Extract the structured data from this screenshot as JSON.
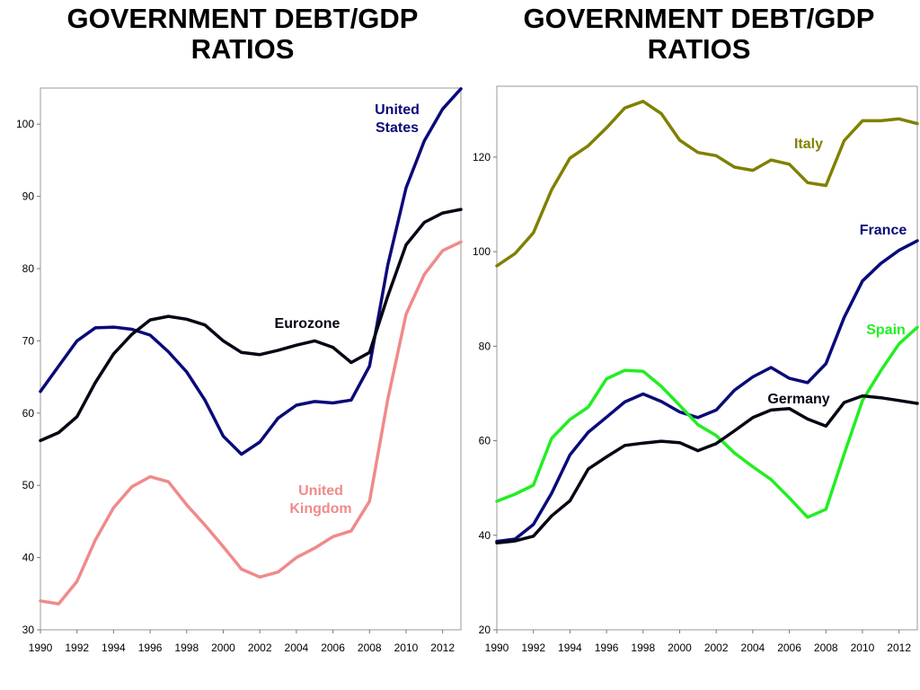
{
  "chart_data": [
    {
      "type": "line",
      "title": "GOVERNMENT DEBT/GDP RATIOS",
      "xlim": [
        1990,
        2013
      ],
      "ylim": [
        30,
        105
      ],
      "xticks": [
        1990,
        1992,
        1994,
        1996,
        1998,
        2000,
        2002,
        2004,
        2006,
        2008,
        2010,
        2012
      ],
      "yticks": [
        30,
        40,
        50,
        60,
        70,
        80,
        90,
        100
      ],
      "grid": false,
      "x": [
        1990,
        1991,
        1992,
        1993,
        1994,
        1995,
        1996,
        1997,
        1998,
        1999,
        2000,
        2001,
        2002,
        2003,
        2004,
        2005,
        2006,
        2007,
        2008,
        2009,
        2010,
        2011,
        2012,
        2013
      ],
      "series": [
        {
          "name": "United States",
          "label_lines": [
            "United",
            "States"
          ],
          "color": "#0a0a78",
          "values": [
            63,
            66.5,
            70,
            71.8,
            71.9,
            71.6,
            70.8,
            68.5,
            65.7,
            61.8,
            56.8,
            54.3,
            56,
            59.3,
            61.1,
            61.6,
            61.4,
            61.8,
            66.5,
            80.5,
            91.2,
            97.7,
            102.1,
            104.9
          ]
        },
        {
          "name": "Eurozone",
          "label_lines": [
            "Eurozone"
          ],
          "color": "#050515",
          "values": [
            56.2,
            57.3,
            59.5,
            64.2,
            68.2,
            70.9,
            72.9,
            73.4,
            73,
            72.2,
            70,
            68.4,
            68.1,
            68.7,
            69.4,
            70,
            69.1,
            67,
            68.4,
            76.2,
            83.3,
            86.4,
            87.7,
            88.2
          ]
        },
        {
          "name": "United Kingdom",
          "label_lines": [
            "United",
            "Kingdom"
          ],
          "color": "#f08a8a",
          "values": [
            34,
            33.6,
            36.7,
            42.4,
            46.9,
            49.8,
            51.2,
            50.5,
            47.3,
            44.5,
            41.5,
            38.4,
            37.3,
            38,
            40,
            41.3,
            42.9,
            43.7,
            47.8,
            61.9,
            73.7,
            79.2,
            82.5,
            83.7
          ]
        }
      ]
    },
    {
      "type": "line",
      "title": "GOVERNMENT DEBT/GDP RATIOS",
      "xlim": [
        1990,
        2013
      ],
      "ylim": [
        20,
        135
      ],
      "xticks": [
        1990,
        1992,
        1994,
        1996,
        1998,
        2000,
        2002,
        2004,
        2006,
        2008,
        2010,
        2012
      ],
      "yticks": [
        20,
        40,
        60,
        80,
        100,
        120
      ],
      "grid": false,
      "x": [
        1990,
        1991,
        1992,
        1993,
        1994,
        1995,
        1996,
        1997,
        1998,
        1999,
        2000,
        2001,
        2002,
        2003,
        2004,
        2005,
        2006,
        2007,
        2008,
        2009,
        2010,
        2011,
        2012,
        2013
      ],
      "series": [
        {
          "name": "Italy",
          "label_lines": [
            "Italy"
          ],
          "color": "#808000",
          "values": [
            97,
            99.6,
            104,
            113.1,
            119.8,
            122.4,
            126.2,
            130.4,
            131.8,
            129.2,
            123.6,
            121,
            120.3,
            117.9,
            117.2,
            119.4,
            118.5,
            114.6,
            114,
            123.5,
            127.7,
            127.7,
            128.1,
            127.1
          ]
        },
        {
          "name": "France",
          "label_lines": [
            "France"
          ],
          "color": "#0a0a78",
          "values": [
            38.7,
            39.2,
            42.3,
            48.9,
            57,
            61.8,
            65,
            68.2,
            69.9,
            68.3,
            66.1,
            64.9,
            66.5,
            70.7,
            73.5,
            75.5,
            73.2,
            72.3,
            76.3,
            86.1,
            93.8,
            97.5,
            100.3,
            102.3
          ]
        },
        {
          "name": "Spain",
          "label_lines": [
            "Spain"
          ],
          "color": "#22ee22",
          "values": [
            47.2,
            48.7,
            50.6,
            60.5,
            64.5,
            67.1,
            73.1,
            74.9,
            74.7,
            71.5,
            67.5,
            63.4,
            61.1,
            57.4,
            54.5,
            51.8,
            47.9,
            43.8,
            45.5,
            57.2,
            68.5,
            74.8,
            80.5,
            84
          ]
        },
        {
          "name": "Germany",
          "label_lines": [
            "Germany"
          ],
          "color": "#050515",
          "values": [
            38.4,
            38.8,
            39.8,
            44.1,
            47.3,
            54,
            56.6,
            59,
            59.5,
            59.9,
            59.6,
            57.9,
            59.4,
            62.1,
            64.9,
            66.5,
            66.8,
            64.6,
            63.1,
            68.1,
            69.5,
            69.1,
            68.5,
            67.9
          ]
        }
      ]
    }
  ]
}
